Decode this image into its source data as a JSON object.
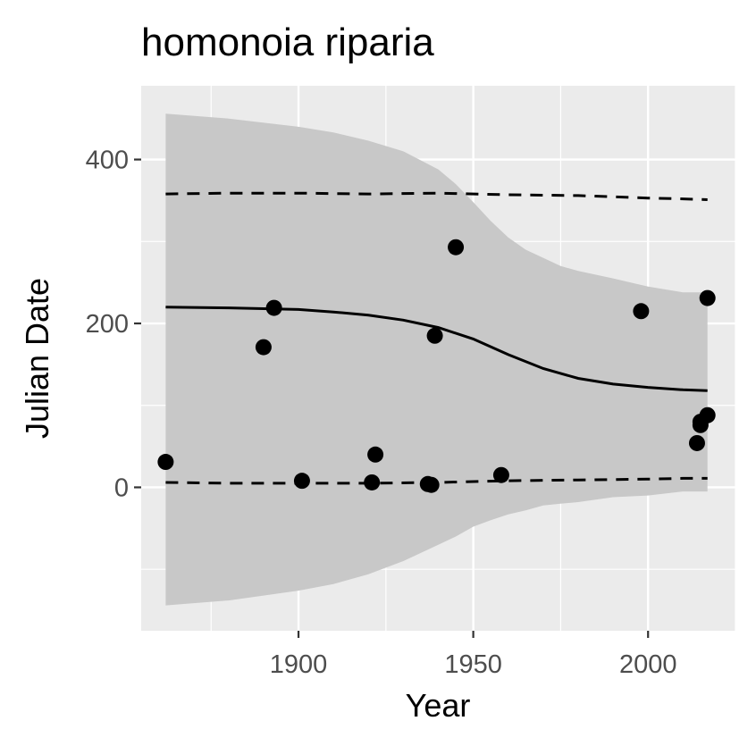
{
  "chart_data": {
    "type": "scatter",
    "title": "homonoia riparia",
    "xlabel": "Year",
    "ylabel": "Julian Date",
    "xlim": [
      1855,
      2025
    ],
    "ylim": [
      -175,
      490
    ],
    "x_ticks": [
      1900,
      1950,
      2000
    ],
    "x_minor_ticks": [
      1875,
      1925,
      1975,
      2025
    ],
    "y_ticks": [
      0,
      200,
      400
    ],
    "y_minor_ticks": [
      -100,
      100,
      300
    ],
    "grid": true,
    "legend": "none",
    "colors": {
      "panel": "#ebebeb",
      "grid": "#ffffff",
      "ribbon": "#c8c8c8",
      "points": "#000000",
      "lines": "#000000",
      "tick_text": "#4d4d4d"
    },
    "points": [
      {
        "x": 1862,
        "y": 31
      },
      {
        "x": 1890,
        "y": 171
      },
      {
        "x": 1893,
        "y": 219
      },
      {
        "x": 1901,
        "y": 8
      },
      {
        "x": 1921,
        "y": 6
      },
      {
        "x": 1922,
        "y": 40
      },
      {
        "x": 1937,
        "y": 4
      },
      {
        "x": 1938,
        "y": 3
      },
      {
        "x": 1939,
        "y": 185
      },
      {
        "x": 1945,
        "y": 293
      },
      {
        "x": 1958,
        "y": 15
      },
      {
        "x": 1998,
        "y": 215
      },
      {
        "x": 2014,
        "y": 54
      },
      {
        "x": 2015,
        "y": 76
      },
      {
        "x": 2015,
        "y": 80
      },
      {
        "x": 2017,
        "y": 88
      },
      {
        "x": 2017,
        "y": 231
      }
    ],
    "fit_line": {
      "x": [
        1862,
        1880,
        1900,
        1910,
        1920,
        1930,
        1940,
        1950,
        1960,
        1970,
        1980,
        1990,
        2000,
        2010,
        2017
      ],
      "y": [
        220,
        219,
        217,
        214,
        210,
        204,
        195,
        181,
        162,
        145,
        133,
        126,
        122,
        119,
        118
      ]
    },
    "ribbon": {
      "x": [
        1862,
        1880,
        1900,
        1910,
        1920,
        1930,
        1940,
        1945,
        1950,
        1955,
        1960,
        1965,
        1970,
        1975,
        1980,
        1990,
        2000,
        2010,
        2017
      ],
      "upper": [
        456,
        450,
        440,
        433,
        423,
        410,
        388,
        370,
        348,
        325,
        305,
        290,
        280,
        270,
        264,
        255,
        245,
        238,
        238
      ],
      "lower": [
        -144,
        -138,
        -126,
        -118,
        -106,
        -90,
        -70,
        -60,
        -48,
        -40,
        -33,
        -28,
        -22,
        -20,
        -18,
        -12,
        -10,
        -5,
        -5
      ]
    },
    "dashed_upper": {
      "x": [
        1862,
        1880,
        1900,
        1920,
        1940,
        1960,
        1980,
        2000,
        2010,
        2017
      ],
      "y": [
        358,
        359,
        359,
        358,
        359,
        357,
        356,
        353,
        352,
        351
      ]
    },
    "dashed_lower": {
      "x": [
        1862,
        1880,
        1900,
        1920,
        1940,
        1960,
        1980,
        2000,
        2010,
        2017
      ],
      "y": [
        6,
        5,
        5,
        5,
        6,
        8,
        9,
        10,
        11,
        11
      ]
    }
  }
}
